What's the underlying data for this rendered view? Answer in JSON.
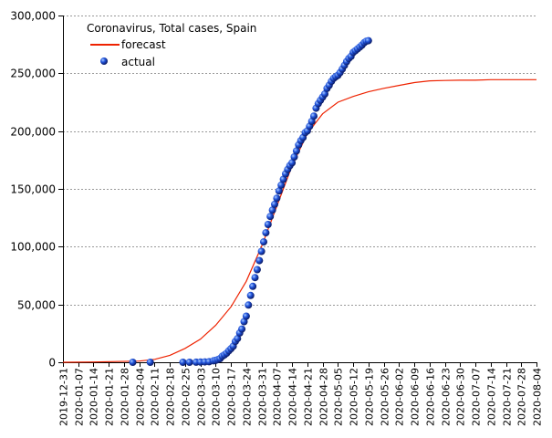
{
  "chart_data": {
    "type": "line",
    "title": "Coronavirus, Total cases, Spain",
    "xlabel": "",
    "ylabel": "",
    "legend_position": "top-left",
    "grid": {
      "horizontal": true,
      "style": "dashed"
    },
    "ylim": [
      0,
      300000
    ],
    "xlim": [
      "2019-12-31",
      "2020-08-04"
    ],
    "y_ticks": [
      0,
      50000,
      100000,
      150000,
      200000,
      250000,
      300000
    ],
    "y_tick_labels": [
      "0",
      "50,000",
      "100,000",
      "150,000",
      "200,000",
      "250,000",
      "300,000"
    ],
    "x_tick_labels": [
      "2019-12-31",
      "2020-01-07",
      "2020-01-14",
      "2020-01-21",
      "2020-01-28",
      "2020-02-04",
      "2020-02-11",
      "2020-02-18",
      "2020-02-25",
      "2020-03-03",
      "2020-03-10",
      "2020-03-17",
      "2020-03-24",
      "2020-03-31",
      "2020-04-07",
      "2020-04-14",
      "2020-04-21",
      "2020-04-28",
      "2020-05-05",
      "2020-05-12",
      "2020-05-19",
      "2020-05-26",
      "2020-06-02",
      "2020-06-09",
      "2020-06-16",
      "2020-06-23",
      "2020-06-30",
      "2020-07-07",
      "2020-07-14",
      "2020-07-21",
      "2020-07-28",
      "2020-08-04"
    ],
    "series": [
      {
        "name": "forecast",
        "color": "#ee2200",
        "style": "line",
        "points": [
          [
            "2019-12-31",
            0
          ],
          [
            "2020-01-14",
            200
          ],
          [
            "2020-02-04",
            1000
          ],
          [
            "2020-02-11",
            2500
          ],
          [
            "2020-02-18",
            6000
          ],
          [
            "2020-02-25",
            12000
          ],
          [
            "2020-03-03",
            20000
          ],
          [
            "2020-03-10",
            32000
          ],
          [
            "2020-03-17",
            48000
          ],
          [
            "2020-03-24",
            70000
          ],
          [
            "2020-03-31",
            100000
          ],
          [
            "2020-04-07",
            135000
          ],
          [
            "2020-04-14",
            170000
          ],
          [
            "2020-04-21",
            198000
          ],
          [
            "2020-04-28",
            215000
          ],
          [
            "2020-05-05",
            225000
          ],
          [
            "2020-05-12",
            230000
          ],
          [
            "2020-05-19",
            234000
          ],
          [
            "2020-05-26",
            237000
          ],
          [
            "2020-06-02",
            239500
          ],
          [
            "2020-06-09",
            242000
          ],
          [
            "2020-06-16",
            243500
          ],
          [
            "2020-06-23",
            243800
          ],
          [
            "2020-06-30",
            244000
          ],
          [
            "2020-07-07",
            244000
          ],
          [
            "2020-07-14",
            244500
          ],
          [
            "2020-07-21",
            244500
          ],
          [
            "2020-07-28",
            244500
          ],
          [
            "2020-08-04",
            244500
          ]
        ]
      },
      {
        "name": "actual",
        "color": "#1133cc",
        "style": "marker",
        "points": [
          [
            "2020-02-01",
            1
          ],
          [
            "2020-02-09",
            2
          ],
          [
            "2020-02-24",
            3
          ],
          [
            "2020-02-27",
            23
          ],
          [
            "2020-03-01",
            84
          ],
          [
            "2020-03-03",
            165
          ],
          [
            "2020-03-05",
            282
          ],
          [
            "2020-03-07",
            500
          ],
          [
            "2020-03-09",
            1231
          ],
          [
            "2020-03-10",
            1695
          ],
          [
            "2020-03-11",
            2277
          ],
          [
            "2020-03-12",
            3146
          ],
          [
            "2020-03-13",
            5232
          ],
          [
            "2020-03-14",
            6391
          ],
          [
            "2020-03-15",
            7798
          ],
          [
            "2020-03-16",
            9942
          ],
          [
            "2020-03-17",
            11748
          ],
          [
            "2020-03-18",
            13910
          ],
          [
            "2020-03-19",
            17963
          ],
          [
            "2020-03-20",
            20410
          ],
          [
            "2020-03-21",
            25374
          ],
          [
            "2020-03-22",
            28768
          ],
          [
            "2020-03-23",
            35136
          ],
          [
            "2020-03-24",
            39885
          ],
          [
            "2020-03-25",
            49515
          ],
          [
            "2020-03-26",
            57786
          ],
          [
            "2020-03-27",
            65719
          ],
          [
            "2020-03-28",
            73235
          ],
          [
            "2020-03-29",
            80110
          ],
          [
            "2020-03-30",
            87956
          ],
          [
            "2020-03-31",
            95923
          ],
          [
            "2020-04-01",
            104118
          ],
          [
            "2020-04-02",
            112065
          ],
          [
            "2020-04-03",
            119199
          ],
          [
            "2020-04-04",
            126168
          ],
          [
            "2020-04-05",
            131646
          ],
          [
            "2020-04-06",
            136675
          ],
          [
            "2020-04-07",
            141942
          ],
          [
            "2020-04-08",
            148220
          ],
          [
            "2020-04-09",
            153222
          ],
          [
            "2020-04-10",
            158273
          ],
          [
            "2020-04-11",
            163027
          ],
          [
            "2020-04-12",
            166831
          ],
          [
            "2020-04-13",
            170099
          ],
          [
            "2020-04-14",
            172541
          ],
          [
            "2020-04-15",
            177644
          ],
          [
            "2020-04-16",
            182816
          ],
          [
            "2020-04-17",
            188068
          ],
          [
            "2020-04-18",
            191726
          ],
          [
            "2020-04-19",
            194416
          ],
          [
            "2020-04-20",
            198674
          ],
          [
            "2020-04-21",
            200210
          ],
          [
            "2020-04-22",
            204178
          ],
          [
            "2020-04-23",
            208389
          ],
          [
            "2020-04-24",
            213024
          ],
          [
            "2020-04-25",
            219764
          ],
          [
            "2020-04-26",
            223759
          ],
          [
            "2020-04-27",
            226629
          ],
          [
            "2020-04-28",
            229422
          ],
          [
            "2020-04-29",
            232128
          ],
          [
            "2020-04-30",
            236899
          ],
          [
            "2020-05-01",
            239639
          ],
          [
            "2020-05-02",
            242988
          ],
          [
            "2020-05-03",
            245567
          ],
          [
            "2020-05-04",
            247122
          ],
          [
            "2020-05-05",
            248301
          ],
          [
            "2020-05-06",
            250561
          ],
          [
            "2020-05-07",
            253682
          ],
          [
            "2020-05-08",
            256855
          ],
          [
            "2020-05-09",
            260117
          ],
          [
            "2020-05-10",
            262783
          ],
          [
            "2020-05-11",
            264663
          ],
          [
            "2020-05-12",
            268143
          ],
          [
            "2020-05-13",
            269520
          ],
          [
            "2020-05-14",
            271095
          ],
          [
            "2020-05-15",
            272646
          ],
          [
            "2020-05-16",
            274367
          ],
          [
            "2020-05-17",
            276505
          ],
          [
            "2020-05-18",
            277719
          ],
          [
            "2020-05-19",
            278188
          ]
        ]
      }
    ]
  }
}
